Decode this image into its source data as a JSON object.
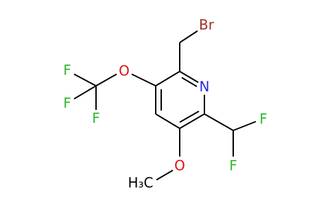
{
  "atoms": [
    {
      "label": "Br"
    },
    {
      "label": "N"
    },
    {
      "label": "O"
    },
    {
      "label": "F"
    },
    {
      "label": "F"
    },
    {
      "label": "F"
    },
    {
      "label": "O"
    },
    {
      "label": "H₃C"
    },
    {
      "label": "F"
    },
    {
      "label": "F"
    }
  ]
}
